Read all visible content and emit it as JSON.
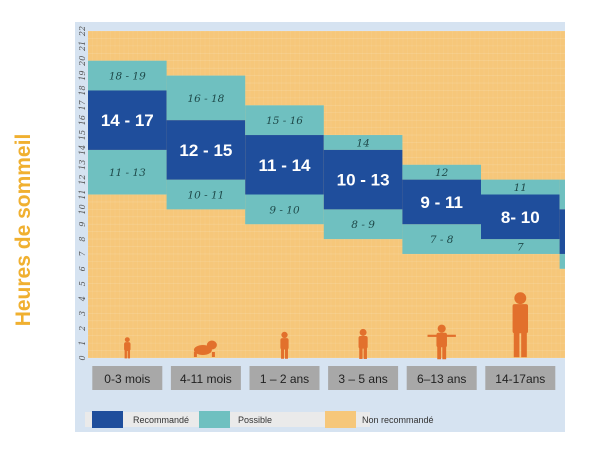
{
  "chart_data": {
    "type": "bar",
    "title": "",
    "xlabel": "",
    "ylabel": "Heures de sommeil",
    "ylim": [
      0,
      22
    ],
    "yticks": [
      0,
      1,
      2,
      3,
      4,
      5,
      6,
      7,
      8,
      9,
      10,
      11,
      12,
      13,
      14,
      15,
      16,
      17,
      18,
      19,
      20,
      21,
      22
    ],
    "grid": true,
    "legend_position": "bottom",
    "colors": {
      "recommended": "#1f4e9c",
      "possible": "#6fc0c0",
      "not_recommended": "#f6c77a",
      "figure": "#e2702c",
      "age_box": "#a8a8a8",
      "ylabel": "#f0b030"
    },
    "categories": [
      "0-3 mois",
      "4-11 mois",
      "1 – 2 ans",
      "3 – 5 ans",
      "6–13 ans",
      "14-17ans",
      ""
    ],
    "series": [
      {
        "name": "Recommandé",
        "ranges": [
          [
            14,
            17
          ],
          [
            12,
            15
          ],
          [
            11,
            14
          ],
          [
            10,
            13
          ],
          [
            9,
            11
          ],
          [
            8,
            10
          ],
          [
            7,
            9
          ]
        ],
        "labels": [
          "14 - 17",
          "12 - 15",
          "11 - 14",
          "10 - 13",
          "9 - 11",
          "8- 10",
          ""
        ]
      },
      {
        "name": "Possible (haut)",
        "ranges": [
          [
            18,
            19
          ],
          [
            16,
            18
          ],
          [
            15,
            16
          ],
          [
            14,
            14
          ],
          [
            12,
            12
          ],
          [
            11,
            11
          ],
          [
            10,
            11
          ]
        ],
        "labels": [
          "18 - 19",
          "16 - 18",
          "15 - 16",
          "14",
          "12",
          "11",
          ""
        ]
      },
      {
        "name": "Possible (bas)",
        "ranges": [
          [
            11,
            13
          ],
          [
            10,
            11
          ],
          [
            9,
            10
          ],
          [
            8,
            9
          ],
          [
            7,
            8
          ],
          [
            7,
            7
          ],
          [
            6,
            6
          ]
        ],
        "labels": [
          "11 - 13",
          "10 - 11",
          "9 - 10",
          "8 - 9",
          "7 - 8",
          "7",
          ""
        ]
      }
    ],
    "legend": [
      {
        "key": "recommended",
        "label": "Recommandé"
      },
      {
        "key": "possible",
        "label": "Possible"
      },
      {
        "key": "not_recommended",
        "label": "Non recommandé"
      }
    ]
  }
}
